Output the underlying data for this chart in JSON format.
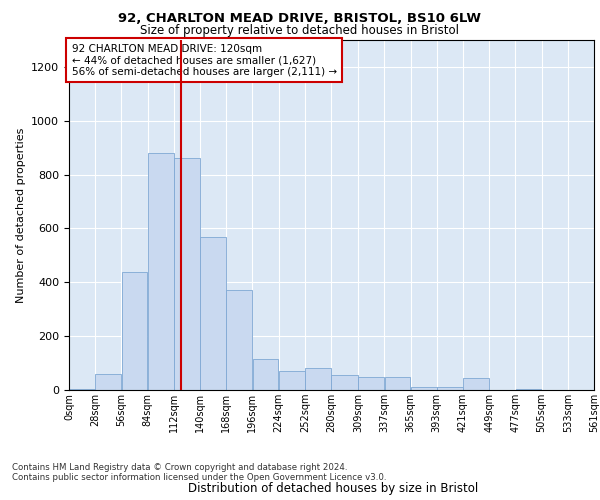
{
  "title1": "92, CHARLTON MEAD DRIVE, BRISTOL, BS10 6LW",
  "title2": "Size of property relative to detached houses in Bristol",
  "xlabel": "Distribution of detached houses by size in Bristol",
  "ylabel": "Number of detached properties",
  "annotation_line1": "92 CHARLTON MEAD DRIVE: 120sqm",
  "annotation_line2": "← 44% of detached houses are smaller (1,627)",
  "annotation_line3": "56% of semi-detached houses are larger (2,111) →",
  "property_size": 120,
  "bin_edges": [
    0,
    28,
    56,
    84,
    112,
    140,
    168,
    196,
    224,
    252,
    280,
    309,
    337,
    365,
    393,
    421,
    449,
    477,
    505,
    533,
    561
  ],
  "bar_heights": [
    5,
    60,
    440,
    880,
    860,
    570,
    370,
    115,
    70,
    80,
    55,
    50,
    50,
    10,
    10,
    45,
    0,
    5,
    0,
    0
  ],
  "bar_color": "#c9d9f0",
  "bar_edgecolor": "#7fa8d4",
  "vline_x": 120,
  "vline_color": "#cc0000",
  "ylim": [
    0,
    1300
  ],
  "yticks": [
    0,
    200,
    400,
    600,
    800,
    1000,
    1200
  ],
  "background_color": "#dce8f5",
  "footer_line1": "Contains HM Land Registry data © Crown copyright and database right 2024.",
  "footer_line2": "Contains public sector information licensed under the Open Government Licence v3.0."
}
